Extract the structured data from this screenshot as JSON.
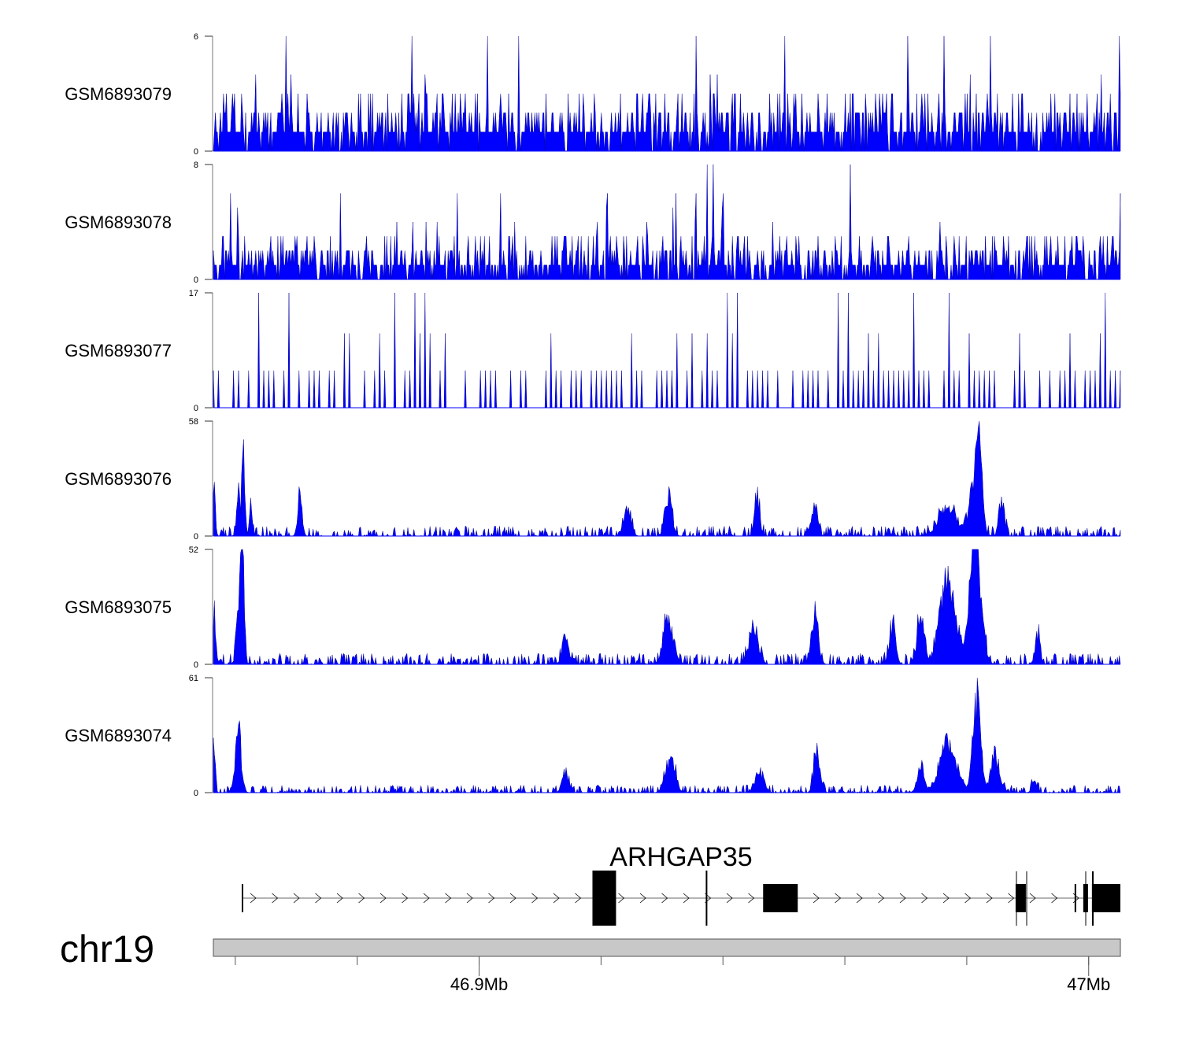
{
  "chart_data": {
    "type": "area",
    "title": "",
    "chromosome": "chr19",
    "xlim_mb": [
      46.8564,
      47.0052
    ],
    "x_ticks_mb": [
      46.86,
      46.88,
      46.9,
      46.92,
      46.94,
      46.96,
      46.98,
      47.0
    ],
    "x_tick_labels": [
      {
        "mb": 46.9,
        "label": "46.9Mb"
      },
      {
        "mb": 47.0,
        "label": "47Mb"
      }
    ],
    "color": "#0000ff",
    "tracks": [
      {
        "name": "GSM6893079",
        "ymax": 6,
        "ymin": 0,
        "style": "noise",
        "levels": [
          1,
          2,
          3,
          4,
          6
        ],
        "density": 0.85,
        "seed": 11,
        "peaks": []
      },
      {
        "name": "GSM6893078",
        "ymax": 8,
        "ymin": 0,
        "style": "noise",
        "levels": [
          1,
          2,
          3,
          4,
          5,
          6,
          8
        ],
        "density": 0.8,
        "seed": 23,
        "peaks": []
      },
      {
        "name": "GSM6893077",
        "ymax": 17,
        "ymin": 0,
        "style": "sparse",
        "levels": [
          5.5,
          11,
          17
        ],
        "density": 0.35,
        "seed": 37,
        "peaks": []
      },
      {
        "name": "GSM6893076",
        "ymax": 58,
        "ymin": 0,
        "style": "peaks",
        "seed": 41,
        "base": 2.5,
        "peaks": [
          [
            46.8565,
            35,
            0.0003
          ],
          [
            46.8605,
            25,
            0.0004
          ],
          [
            46.8613,
            58,
            0.0003
          ],
          [
            46.8625,
            20,
            0.0003
          ],
          [
            46.8706,
            24,
            0.0005
          ],
          [
            46.9243,
            18,
            0.0008
          ],
          [
            46.9311,
            25,
            0.0008
          ],
          [
            46.9456,
            23,
            0.0006
          ],
          [
            46.955,
            18,
            0.0007
          ],
          [
            46.9769,
            18,
            0.002
          ],
          [
            46.9813,
            35,
            0.0012
          ],
          [
            46.9821,
            48,
            0.0006
          ],
          [
            46.9857,
            24,
            0.0006
          ]
        ]
      },
      {
        "name": "GSM6893075",
        "ymax": 52,
        "ymin": 0,
        "style": "peaks",
        "seed": 53,
        "base": 2.5,
        "peaks": [
          [
            46.8565,
            32,
            0.0003
          ],
          [
            46.8607,
            40,
            0.0006
          ],
          [
            46.8612,
            52,
            0.0004
          ],
          [
            46.9141,
            15,
            0.0007
          ],
          [
            46.9311,
            26,
            0.0011
          ],
          [
            46.945,
            20,
            0.001
          ],
          [
            46.9551,
            28,
            0.0008
          ],
          [
            46.9678,
            22,
            0.0007
          ],
          [
            46.9724,
            25,
            0.0008
          ],
          [
            46.9769,
            48,
            0.0018
          ],
          [
            46.981,
            48,
            0.001
          ],
          [
            46.9818,
            38,
            0.0012
          ],
          [
            46.9916,
            15,
            0.0006
          ]
        ]
      },
      {
        "name": "GSM6893074",
        "ymax": 61,
        "ymin": 0,
        "style": "peaks",
        "seed": 67,
        "base": 2,
        "peaks": [
          [
            46.8565,
            35,
            0.0003
          ],
          [
            46.8605,
            40,
            0.0007
          ],
          [
            46.9141,
            15,
            0.0007
          ],
          [
            46.9314,
            24,
            0.0011
          ],
          [
            46.946,
            14,
            0.001
          ],
          [
            46.9554,
            28,
            0.0007
          ],
          [
            46.9724,
            15,
            0.0008
          ],
          [
            46.9769,
            32,
            0.002
          ],
          [
            46.9817,
            61,
            0.0009
          ],
          [
            46.9847,
            26,
            0.001
          ],
          [
            46.9911,
            8,
            0.0006
          ]
        ]
      }
    ],
    "gene": {
      "name": "ARHGAP35",
      "strand": "+",
      "start_mb": 46.86105,
      "end_mb": 47.0052,
      "exons": [
        {
          "start": 46.86105,
          "end": 46.8611,
          "kind": "utr"
        },
        {
          "start": 46.91859,
          "end": 46.92246,
          "kind": "tall"
        },
        {
          "start": 46.93731,
          "end": 46.93736,
          "kind": "tall"
        },
        {
          "start": 46.94659,
          "end": 46.95227,
          "kind": "cds"
        },
        {
          "start": 46.98801,
          "end": 46.98969,
          "kind": "cds"
        },
        {
          "start": 46.99769,
          "end": 46.99775,
          "kind": "cds"
        },
        {
          "start": 46.99911,
          "end": 46.99989,
          "kind": "cds"
        },
        {
          "start": 47.00053,
          "end": 47.0052,
          "kind": "cds"
        }
      ]
    }
  }
}
